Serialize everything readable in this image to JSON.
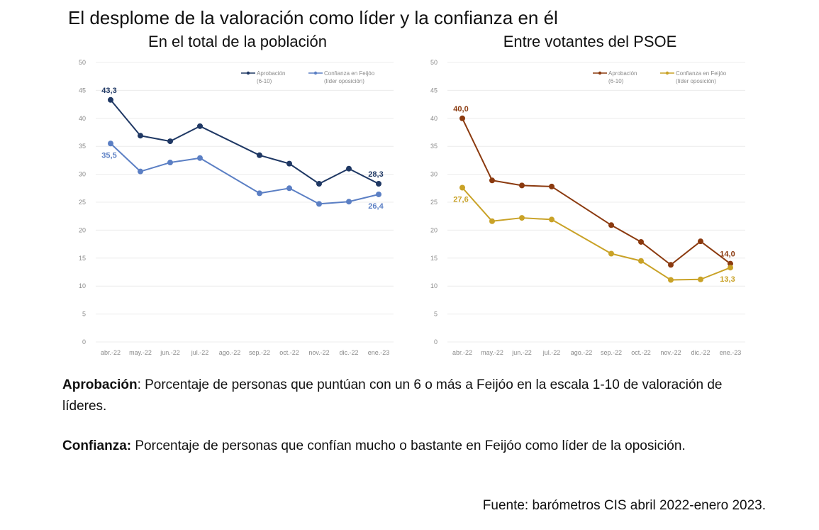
{
  "title": "El desplome de la valoración como líder y la confianza en él",
  "notes": {
    "aprobacion_term": "Aprobación",
    "aprobacion_text": ": Porcentaje de personas que puntúan con un 6 o más a Feijóo en la escala 1-10 de valoración de líderes.",
    "confianza_term": "Confianza:",
    "confianza_text": " Porcentaje de personas que confían mucho o bastante en Feijóo como líder de la oposición."
  },
  "source": "Fuente: barómetros CIS abril 2022-enero 2023.",
  "chart_data": [
    {
      "type": "line",
      "title": "En el total de la población",
      "categories": [
        "abr.-22",
        "may.-22",
        "jun.-22",
        "jul.-22",
        "ago.-22",
        "sep.-22",
        "oct.-22",
        "nov.-22",
        "dic.-22",
        "ene.-23"
      ],
      "ylim": [
        0,
        50
      ],
      "yticks": [
        0,
        5,
        10,
        15,
        20,
        25,
        30,
        35,
        40,
        45,
        50
      ],
      "legend_position": "top-right",
      "series": [
        {
          "name": "Aprobación",
          "name_line2": "(6-10)",
          "color": "#1f3864",
          "values": [
            43.3,
            36.9,
            35.9,
            38.6,
            null,
            33.4,
            31.9,
            28.3,
            31.0,
            28.3
          ],
          "labels": [
            {
              "index": 0,
              "text": "43,3",
              "pos": "above"
            },
            {
              "index": 9,
              "text": "28,3",
              "pos": "above"
            }
          ]
        },
        {
          "name": "Confianza en Feijóo",
          "name_line2": "(líder oposición)",
          "color": "#5b7fc4",
          "values": [
            35.5,
            30.5,
            32.1,
            32.9,
            null,
            26.6,
            27.5,
            24.7,
            25.1,
            26.4
          ],
          "labels": [
            {
              "index": 0,
              "text": "35,5",
              "pos": "below"
            },
            {
              "index": 9,
              "text": "26,4",
              "pos": "below"
            }
          ]
        }
      ]
    },
    {
      "type": "line",
      "title": "Entre votantes del PSOE",
      "categories": [
        "abr.-22",
        "may.-22",
        "jun.-22",
        "jul.-22",
        "ago.-22",
        "sep.-22",
        "oct.-22",
        "nov.-22",
        "dic.-22",
        "ene.-23"
      ],
      "ylim": [
        0,
        50
      ],
      "yticks": [
        0,
        5,
        10,
        15,
        20,
        25,
        30,
        35,
        40,
        45,
        50
      ],
      "legend_position": "top-right",
      "series": [
        {
          "name": "Aprobación",
          "name_line2": "(6-10)",
          "color": "#8b3a0f",
          "values": [
            40.0,
            28.9,
            28.0,
            27.8,
            null,
            20.9,
            17.9,
            13.8,
            18.0,
            14.0
          ],
          "labels": [
            {
              "index": 0,
              "text": "40,0",
              "pos": "above"
            },
            {
              "index": 9,
              "text": "14,0",
              "pos": "above"
            }
          ]
        },
        {
          "name": "Confianza en Feijóo",
          "name_line2": "(líder oposición)",
          "color": "#c9a227",
          "values": [
            27.6,
            21.6,
            22.2,
            21.9,
            null,
            15.8,
            14.5,
            11.1,
            11.2,
            13.3
          ],
          "labels": [
            {
              "index": 0,
              "text": "27,6",
              "pos": "below"
            },
            {
              "index": 9,
              "text": "13,3",
              "pos": "below"
            }
          ]
        }
      ]
    }
  ]
}
